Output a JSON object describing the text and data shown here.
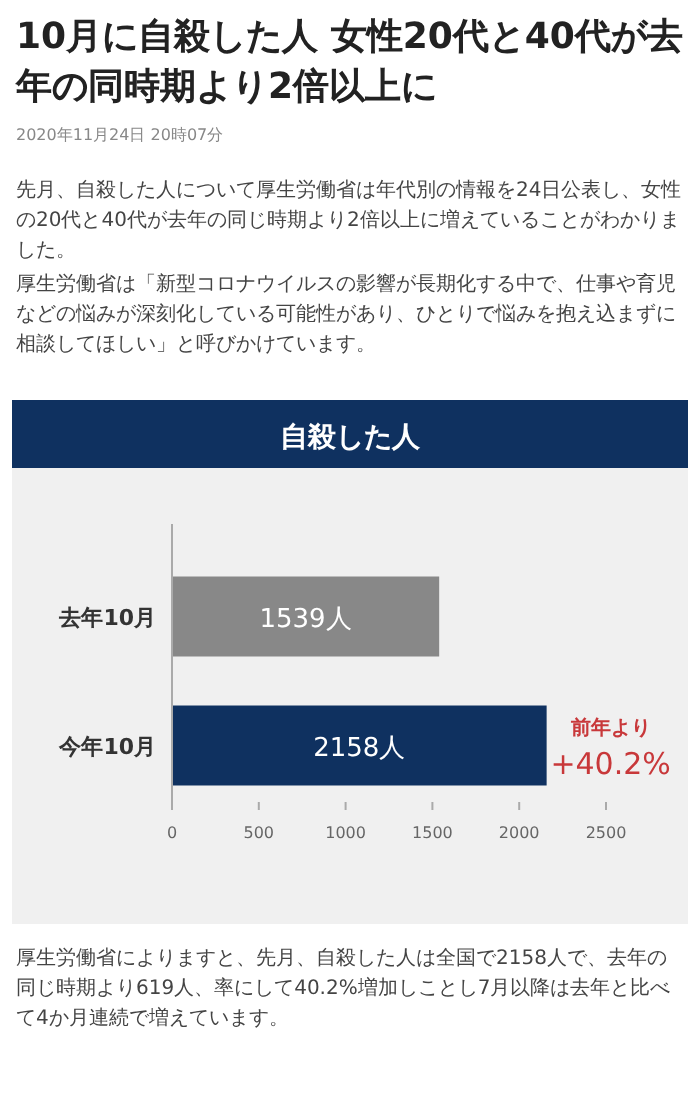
{
  "chart_data": {
    "type": "bar",
    "orientation": "horizontal",
    "title": "10月に自殺した人 女性20代と40代が去年の同時期より2倍以上に",
    "subtitle": "2020年11月24日 20時07分",
    "annotations": [
      "先月、自殺した人について厚生労働省は年代別の情報を24日公表し、女性の20代と40代が去年の同じ時期より2倍以上に増えていることがわかりました。",
      "厚生労働省は「新型コロナウイルスの影響が長期化する中で、仕事や育児などの悩みが深刻化している可能性があり、ひとりで悩みを抱え込まずに相談してほしい」と呼びかけています。",
      "自殺した人",
      {
        "text": "前年より +40.2%",
        "x": 2158,
        "y": "今年10月"
      },
      "厚生労働省によりますと、先月、自殺した人は全国で2158人で、去年の同じ時期より619人、率にして40.2%増加しことし7月以降は去年と比べて4か月連続で増えています。"
    ],
    "categories": [
      "去年10月",
      "今年10月"
    ],
    "values": [
      1539,
      2158
    ],
    "colors": [
      "#888888",
      "#0f3160"
    ],
    "value_labels": [
      "1539人",
      "2158人"
    ],
    "xlim": [
      0,
      2500
    ],
    "xticks": [
      0,
      500,
      1000,
      1500,
      2000,
      2500
    ]
  }
}
